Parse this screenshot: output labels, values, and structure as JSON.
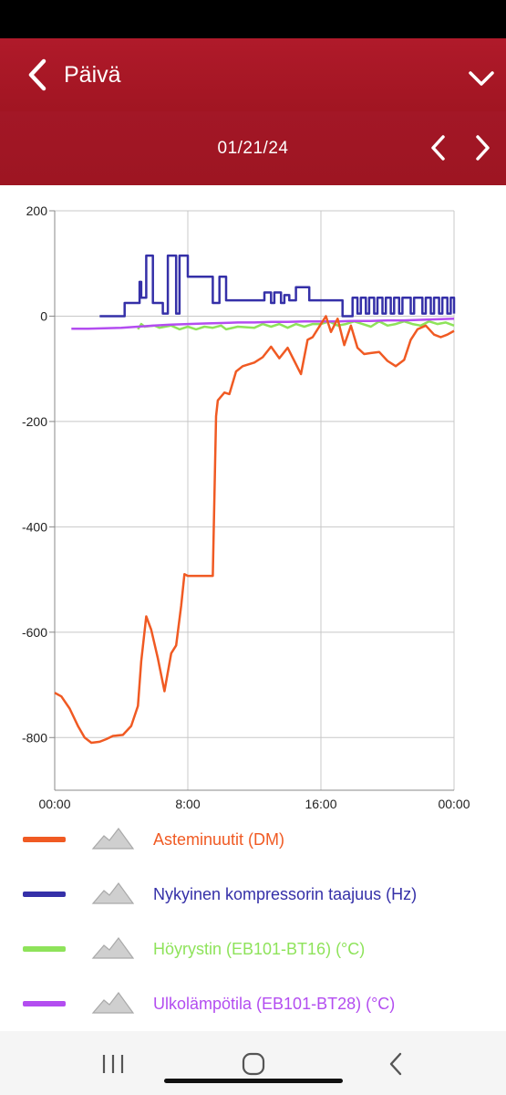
{
  "header": {
    "title": "Päivä"
  },
  "date_bar": {
    "date": "01/21/24"
  },
  "colors": {
    "header_red": "#a8182a",
    "asteminuutit": "#f05a23",
    "kompressori": "#3530a8",
    "hoyrystin": "#8ee35a",
    "ulkolampotila": "#b34df0"
  },
  "legend": [
    {
      "label": "Asteminuutit (DM)",
      "color": "#f05a23",
      "toggle_icon": "mountain-icon"
    },
    {
      "label": "Nykyinen kompressorin taajuus (Hz)",
      "color": "#3530a8",
      "toggle_icon": "mountain-icon"
    },
    {
      "label": "Höyrystin (EB101-BT16) (°C)",
      "color": "#8ee35a",
      "toggle_icon": "mountain-icon"
    },
    {
      "label": "Ulkolämpötila (EB101-BT28) (°C)",
      "color": "#b34df0",
      "toggle_icon": "mountain-icon"
    }
  ],
  "chart_data": {
    "type": "line",
    "x_unit": "hours",
    "xlim": [
      0,
      24
    ],
    "ylim": [
      -900,
      200
    ],
    "y_ticks": [
      "200",
      "0",
      "-200",
      "-400",
      "-600",
      "-800"
    ],
    "y_tick_values": [
      200,
      0,
      -200,
      -400,
      -600,
      -800
    ],
    "x_ticks": [
      "00:00",
      "8:00",
      "16:00",
      "00:00"
    ],
    "x_tick_values": [
      0,
      8,
      16,
      24
    ],
    "grid": true,
    "legend_position": "bottom",
    "series": [
      {
        "name": "Asteminuutit (DM)",
        "color": "#f05a23",
        "x": [
          0,
          0.4,
          0.9,
          1.4,
          1.8,
          2.2,
          2.7,
          3.1,
          3.5,
          4.1,
          4.6,
          5.0,
          5.2,
          5.5,
          5.8,
          6.2,
          6.6,
          7.0,
          7.3,
          7.6,
          7.8,
          8.0,
          8.5,
          9.0,
          9.5,
          9.7,
          9.8,
          10.2,
          10.5,
          10.9,
          11.3,
          12.0,
          12.5,
          13.0,
          13.5,
          14.0,
          14.4,
          14.8,
          15.2,
          15.5,
          16.0,
          16.3,
          16.6,
          17.0,
          17.4,
          17.8,
          18.2,
          18.6,
          19.0,
          19.5,
          20.0,
          20.5,
          21.0,
          21.4,
          21.8,
          22.3,
          22.8,
          23.2,
          23.6,
          24.0
        ],
        "y": [
          -715,
          -722,
          -745,
          -778,
          -800,
          -810,
          -808,
          -803,
          -797,
          -795,
          -778,
          -740,
          -655,
          -570,
          -595,
          -650,
          -712,
          -640,
          -625,
          -550,
          -490,
          -493,
          -493,
          -493,
          -493,
          -190,
          -160,
          -145,
          -148,
          -105,
          -95,
          -88,
          -78,
          -58,
          -80,
          -60,
          -85,
          -110,
          -45,
          -40,
          -15,
          0,
          -30,
          -5,
          -55,
          -18,
          -60,
          -72,
          -70,
          -68,
          -85,
          -95,
          -83,
          -45,
          -25,
          -18,
          -35,
          -40,
          -35,
          -28
        ]
      },
      {
        "name": "Nykyinen kompressorin taajuus (Hz)",
        "color": "#3530a8",
        "x": [
          2.7,
          4.0,
          4.2,
          4.9,
          5.1,
          5.2,
          5.5,
          5.7,
          5.9,
          6.2,
          6.5,
          6.8,
          7.1,
          7.3,
          7.5,
          7.7,
          8.0,
          8.3,
          8.5,
          9.2,
          9.5,
          9.7,
          9.9,
          10.1,
          10.3,
          10.7,
          11.0,
          11.3,
          11.6,
          12.4,
          12.6,
          13.0,
          13.2,
          13.6,
          13.8,
          14.1,
          14.3,
          14.5,
          15.3,
          15.5,
          16.0,
          16.3,
          16.6,
          17.1,
          17.3,
          17.7,
          17.9,
          18.2,
          18.4,
          18.7,
          18.9,
          19.2,
          19.4,
          19.7,
          19.9,
          20.2,
          20.4,
          20.7,
          20.9,
          21.4,
          21.6,
          22.1,
          22.3,
          22.6,
          22.8,
          23.1,
          23.3,
          23.6,
          23.8,
          24.0
        ],
        "y": [
          0,
          0,
          25,
          25,
          65,
          35,
          115,
          115,
          25,
          25,
          5,
          115,
          115,
          5,
          115,
          115,
          75,
          75,
          75,
          75,
          25,
          25,
          75,
          75,
          30,
          30,
          30,
          30,
          30,
          30,
          45,
          25,
          45,
          25,
          40,
          30,
          30,
          55,
          30,
          30,
          30,
          30,
          30,
          30,
          0,
          0,
          35,
          5,
          35,
          5,
          35,
          5,
          35,
          5,
          35,
          5,
          35,
          5,
          35,
          5,
          35,
          5,
          35,
          5,
          35,
          5,
          35,
          5,
          35,
          5
        ]
      },
      {
        "name": "Höyrystin (EB101-BT16) (°C)",
        "color": "#8ee35a",
        "x": [
          5.0,
          5.2,
          5.4,
          6.0,
          6.3,
          7.0,
          7.5,
          8.0,
          8.5,
          9.0,
          9.5,
          10.0,
          10.3,
          11.0,
          12.0,
          12.5,
          13.0,
          13.5,
          14.0,
          14.5,
          15.0,
          15.5,
          16.0,
          16.5,
          17.0,
          17.5,
          18.0,
          18.5,
          19.0,
          19.5,
          20.0,
          20.5,
          21.0,
          21.5,
          22.0,
          22.5,
          23.0,
          23.5,
          24.0
        ],
        "y": [
          -25,
          -15,
          -20,
          -18,
          -22,
          -18,
          -25,
          -20,
          -25,
          -20,
          -22,
          -18,
          -25,
          -20,
          -22,
          -15,
          -20,
          -15,
          -22,
          -15,
          -20,
          -15,
          -15,
          -10,
          -18,
          -15,
          -10,
          -15,
          -20,
          -10,
          -18,
          -15,
          -10,
          -15,
          -18,
          -10,
          -15,
          -12,
          -18
        ]
      },
      {
        "name": "Ulkolämpötila (EB101-BT28) (°C)",
        "color": "#b34df0",
        "x": [
          1.0,
          2.0,
          3.0,
          4.0,
          5.0,
          6.0,
          7.0,
          8.0,
          9.0,
          10.0,
          11.0,
          12.0,
          13.0,
          14.0,
          15.0,
          16.0,
          17.0,
          18.0,
          19.0,
          20.0,
          21.0,
          22.0,
          23.0,
          24.0
        ],
        "y": [
          -24,
          -24,
          -23,
          -22,
          -20,
          -18,
          -16,
          -15,
          -14,
          -13,
          -12,
          -12,
          -11,
          -11,
          -10,
          -10,
          -10,
          -9,
          -9,
          -8,
          -8,
          -7,
          -6,
          -5
        ]
      }
    ]
  }
}
